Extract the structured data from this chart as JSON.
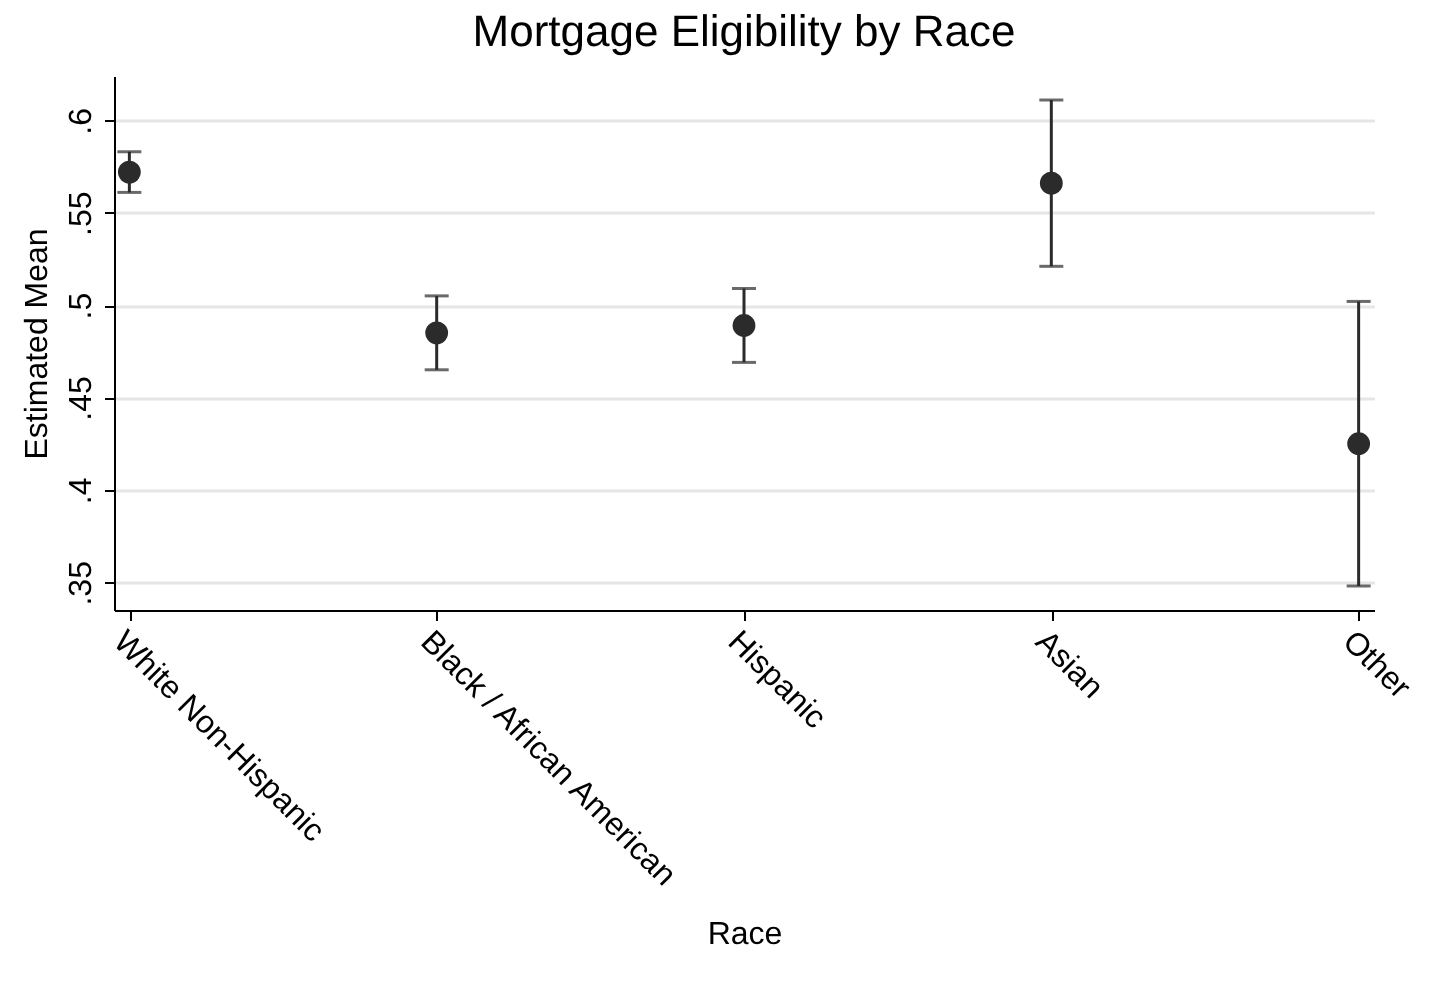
{
  "chart_data": {
    "type": "scatter",
    "title": "Mortgage Eligibility by Race",
    "xlabel": "Race",
    "ylabel": "Estimated Mean",
    "categories": [
      "White Non-Hispanic",
      "Black / African American",
      "Hispanic",
      "Asian",
      "Other"
    ],
    "values": [
      0.572,
      0.485,
      0.489,
      0.566,
      0.425
    ],
    "errors": [
      [
        0.561,
        0.583
      ],
      [
        0.465,
        0.505
      ],
      [
        0.469,
        0.509
      ],
      [
        0.521,
        0.611
      ],
      [
        0.348,
        0.502
      ]
    ],
    "color": "#2b2b2b",
    "marker": "circle",
    "ylim": [
      0.335,
      0.624
    ],
    "yticks": [
      {
        "value": 0.35,
        "label": ".35"
      },
      {
        "value": 0.4,
        "label": ".4"
      },
      {
        "value": 0.45,
        "label": ".45"
      },
      {
        "value": 0.5,
        "label": ".5"
      },
      {
        "value": 0.55,
        "label": ".55"
      },
      {
        "value": 0.6,
        "label": ".6"
      }
    ],
    "grid": "y"
  }
}
